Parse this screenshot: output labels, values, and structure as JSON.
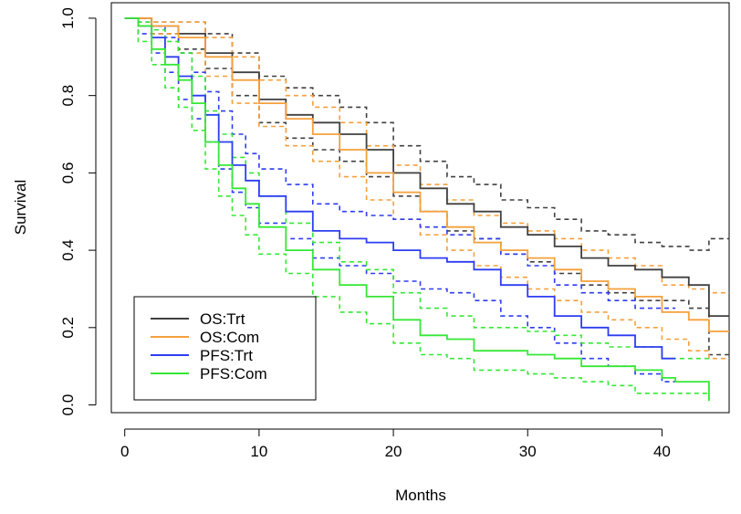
{
  "chart_data": {
    "type": "line",
    "title": "",
    "xlabel": "Months",
    "ylabel": "Survival",
    "xlim": [
      -1,
      45
    ],
    "ylim": [
      -0.02,
      1.04
    ],
    "xticks": [
      0,
      10,
      20,
      30,
      40
    ],
    "yticks": [
      0.0,
      0.2,
      0.4,
      0.6,
      0.8,
      1.0
    ],
    "xtick_labels": [
      "0",
      "10",
      "20",
      "30",
      "40"
    ],
    "ytick_labels": [
      "0.0",
      "0.2",
      "0.4",
      "0.6",
      "0.8",
      "1.0"
    ],
    "step": true,
    "grid": false,
    "legend_position": "bottom-left",
    "series": [
      {
        "name": "OS:Trt",
        "color": "#404040",
        "x": [
          0,
          2,
          4,
          6,
          8,
          10,
          12,
          14,
          16,
          18,
          20,
          22,
          24,
          26,
          28,
          30,
          32,
          34,
          36,
          38,
          40,
          42,
          43.5,
          45
        ],
        "y": [
          1.0,
          0.98,
          0.96,
          0.91,
          0.86,
          0.79,
          0.75,
          0.73,
          0.7,
          0.66,
          0.6,
          0.56,
          0.52,
          0.5,
          0.46,
          0.44,
          0.41,
          0.38,
          0.36,
          0.35,
          0.33,
          0.31,
          0.23,
          0.23
        ],
        "lower": [
          1.0,
          0.96,
          0.92,
          0.87,
          0.8,
          0.73,
          0.69,
          0.66,
          0.63,
          0.59,
          0.54,
          0.5,
          0.45,
          0.43,
          0.39,
          0.37,
          0.34,
          0.31,
          0.29,
          0.27,
          0.27,
          0.25,
          0.13,
          0.13
        ],
        "upper": [
          1.0,
          0.99,
          0.99,
          0.96,
          0.91,
          0.85,
          0.82,
          0.8,
          0.77,
          0.73,
          0.67,
          0.63,
          0.59,
          0.57,
          0.53,
          0.51,
          0.48,
          0.45,
          0.44,
          0.42,
          0.41,
          0.4,
          0.43,
          0.43
        ]
      },
      {
        "name": "OS:Com",
        "color": "#f5a03c",
        "x": [
          0,
          2,
          4,
          6,
          8,
          10,
          12,
          14,
          16,
          18,
          20,
          22,
          24,
          26,
          28,
          30,
          32,
          34,
          36,
          38,
          40,
          42,
          43.5,
          45
        ],
        "y": [
          1.0,
          0.98,
          0.95,
          0.9,
          0.84,
          0.78,
          0.74,
          0.7,
          0.66,
          0.6,
          0.55,
          0.5,
          0.46,
          0.42,
          0.4,
          0.38,
          0.35,
          0.32,
          0.3,
          0.28,
          0.24,
          0.22,
          0.19,
          0.19
        ],
        "lower": [
          1.0,
          0.96,
          0.91,
          0.85,
          0.78,
          0.72,
          0.67,
          0.63,
          0.59,
          0.53,
          0.48,
          0.44,
          0.4,
          0.36,
          0.33,
          0.3,
          0.27,
          0.24,
          0.22,
          0.2,
          0.17,
          0.14,
          0.12,
          0.12
        ],
        "upper": [
          1.0,
          0.99,
          0.99,
          0.95,
          0.9,
          0.84,
          0.8,
          0.77,
          0.73,
          0.67,
          0.62,
          0.57,
          0.53,
          0.49,
          0.47,
          0.45,
          0.43,
          0.4,
          0.38,
          0.36,
          0.31,
          0.3,
          0.29,
          0.29
        ]
      },
      {
        "name": "PFS:Trt",
        "color": "#2d3df0",
        "x": [
          0,
          1,
          2,
          3,
          4,
          5,
          6,
          7,
          8,
          9,
          10,
          12,
          14,
          16,
          18,
          20,
          22,
          24,
          26,
          28,
          30,
          32,
          34,
          36,
          38,
          40,
          41
        ],
        "y": [
          1.0,
          0.98,
          0.95,
          0.9,
          0.85,
          0.8,
          0.75,
          0.68,
          0.62,
          0.58,
          0.54,
          0.5,
          0.45,
          0.43,
          0.42,
          0.4,
          0.38,
          0.37,
          0.35,
          0.31,
          0.28,
          0.23,
          0.2,
          0.18,
          0.15,
          0.12,
          0.12
        ],
        "lower": [
          1.0,
          0.96,
          0.91,
          0.86,
          0.79,
          0.74,
          0.68,
          0.61,
          0.55,
          0.51,
          0.47,
          0.43,
          0.38,
          0.36,
          0.34,
          0.32,
          0.3,
          0.29,
          0.27,
          0.23,
          0.2,
          0.16,
          0.12,
          0.1,
          0.08,
          0.06,
          0.06
        ],
        "upper": [
          1.0,
          0.99,
          0.98,
          0.95,
          0.91,
          0.86,
          0.81,
          0.76,
          0.7,
          0.65,
          0.61,
          0.57,
          0.52,
          0.5,
          0.49,
          0.48,
          0.46,
          0.44,
          0.43,
          0.39,
          0.36,
          0.31,
          0.29,
          0.27,
          0.25,
          0.25,
          0.25
        ]
      },
      {
        "name": "PFS:Com",
        "color": "#36e836",
        "x": [
          0,
          1,
          2,
          3,
          4,
          5,
          6,
          7,
          8,
          9,
          10,
          12,
          14,
          16,
          18,
          20,
          22,
          24,
          26,
          28,
          30,
          32,
          34,
          36,
          38,
          40,
          41,
          42,
          43.5
        ],
        "y": [
          1.0,
          0.98,
          0.92,
          0.88,
          0.84,
          0.78,
          0.68,
          0.62,
          0.56,
          0.52,
          0.46,
          0.4,
          0.35,
          0.31,
          0.28,
          0.22,
          0.18,
          0.17,
          0.14,
          0.14,
          0.13,
          0.12,
          0.1,
          0.1,
          0.09,
          0.07,
          0.06,
          0.06,
          0.01
        ],
        "lower": [
          1.0,
          0.94,
          0.88,
          0.82,
          0.77,
          0.71,
          0.61,
          0.54,
          0.49,
          0.44,
          0.39,
          0.34,
          0.28,
          0.24,
          0.21,
          0.16,
          0.13,
          0.12,
          0.09,
          0.09,
          0.08,
          0.07,
          0.06,
          0.05,
          0.03,
          0.03,
          0.03,
          0.03,
          0.03
        ],
        "upper": [
          1.0,
          0.99,
          0.97,
          0.94,
          0.91,
          0.85,
          0.76,
          0.7,
          0.64,
          0.6,
          0.54,
          0.47,
          0.42,
          0.37,
          0.35,
          0.29,
          0.25,
          0.23,
          0.2,
          0.2,
          0.19,
          0.18,
          0.16,
          0.15,
          0.15,
          0.12,
          0.12,
          0.12,
          0.12
        ]
      }
    ]
  }
}
